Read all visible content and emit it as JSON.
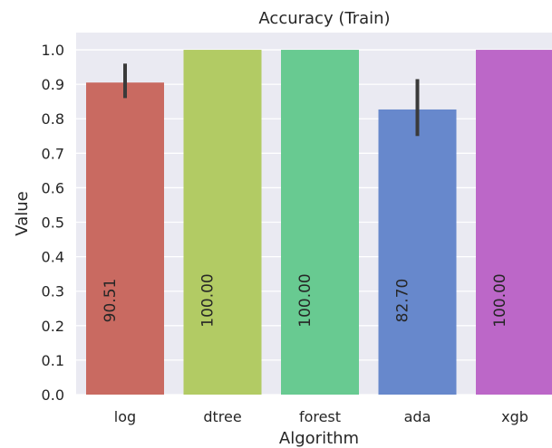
{
  "chart_data": {
    "type": "bar",
    "title": "Accuracy (Train)",
    "xlabel": "Algorithm",
    "ylabel": "Value",
    "ylim": [
      0,
      1.05
    ],
    "yticks": [
      "0.0",
      "0.1",
      "0.2",
      "0.3",
      "0.4",
      "0.5",
      "0.6",
      "0.7",
      "0.8",
      "0.9",
      "1.0"
    ],
    "grid": true,
    "categories": [
      "log",
      "dtree",
      "forest",
      "ada",
      "xgb"
    ],
    "values": [
      0.9051,
      1.0,
      1.0,
      0.827,
      1.0
    ],
    "error_bars": [
      [
        0.86,
        0.96
      ],
      null,
      null,
      [
        0.75,
        0.915
      ],
      null
    ],
    "bar_labels": [
      "90.51",
      "100.00",
      "100.00",
      "82.70",
      "100.00"
    ],
    "colors": [
      "#c96a61",
      "#b2cb64",
      "#68ca91",
      "#6788cc",
      "#bc67c8"
    ],
    "background": "#eaeaf2"
  }
}
